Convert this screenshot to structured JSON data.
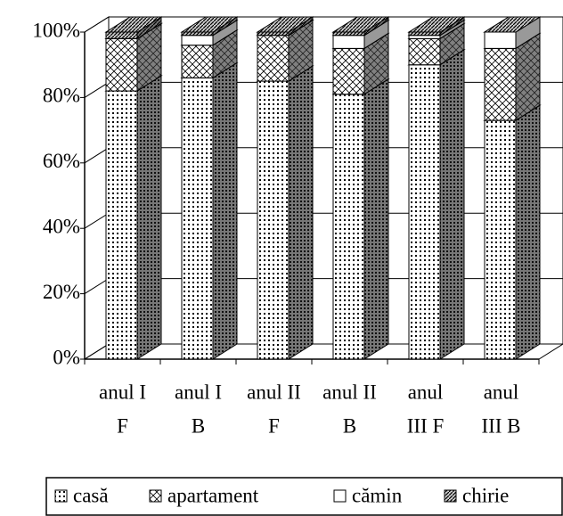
{
  "chart_data": {
    "type": "bar3d_stacked",
    "categories": [
      [
        "anul I",
        "F"
      ],
      [
        "anul I",
        "B"
      ],
      [
        "anul II",
        "F"
      ],
      [
        "anul II",
        "B"
      ],
      [
        "anul",
        "III F"
      ],
      [
        "anul",
        "III B"
      ]
    ],
    "series": [
      {
        "name": "casă",
        "color": "#ffffff",
        "pattern": "dots",
        "values": [
          82,
          86,
          85,
          81,
          90,
          73
        ]
      },
      {
        "name": "apartament",
        "color": "#ffffff",
        "pattern": "crosshatch",
        "values": [
          16,
          10,
          14,
          14,
          8,
          22
        ]
      },
      {
        "name": "cămin",
        "color": "#ffffff",
        "pattern": "none",
        "values": [
          0,
          3,
          0,
          4,
          1,
          5
        ]
      },
      {
        "name": "chirie",
        "color": "#ffffff",
        "pattern": "diagonal",
        "values": [
          2,
          1,
          1,
          1,
          1,
          0
        ]
      }
    ],
    "ylim": [
      0,
      100
    ],
    "yticks": [
      {
        "value": 0,
        "label": "0%"
      },
      {
        "value": 20,
        "label": "20%"
      },
      {
        "value": 40,
        "label": "40%"
      },
      {
        "value": 60,
        "label": "60%"
      },
      {
        "value": 80,
        "label": "80%"
      },
      {
        "value": 100,
        "label": "100%"
      }
    ],
    "grid": true,
    "legend": "bottom"
  }
}
